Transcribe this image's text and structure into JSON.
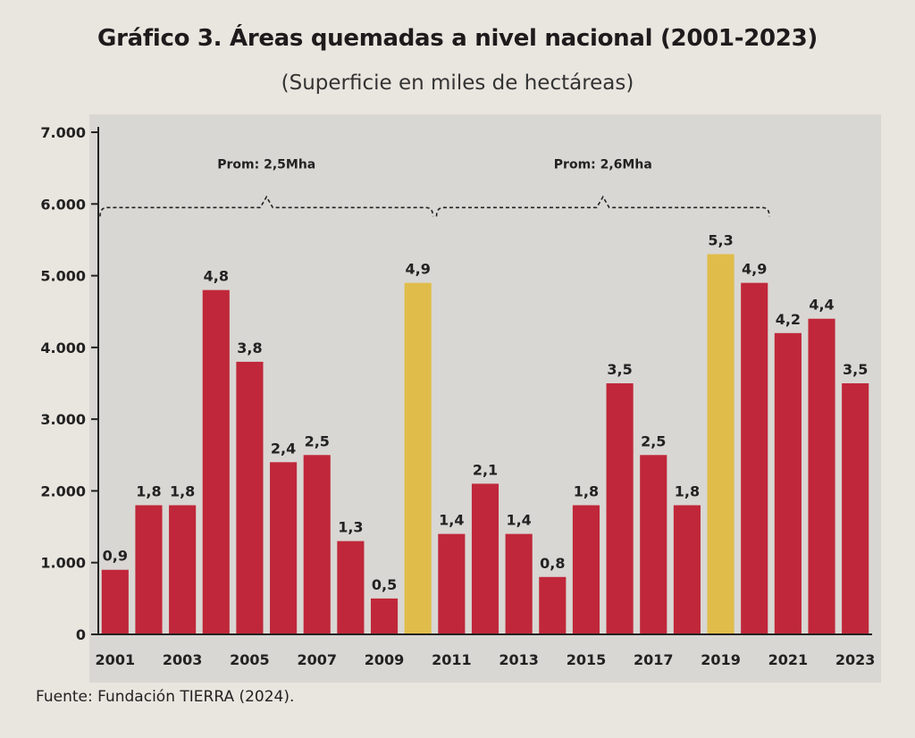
{
  "title": "Gráfico 3. Áreas quemadas a nivel nacional (2001-2023)",
  "subtitle": "(Superficie en miles de hectáreas)",
  "source": "Fuente: Fundación TIERRA (2024).",
  "colors": {
    "bar": "#c0273a",
    "highlight": "#e0bd4a",
    "panel": "#d9d7d3"
  },
  "chart_data": {
    "type": "bar",
    "categories": [
      "2001",
      "2002",
      "2003",
      "2004",
      "2005",
      "2006",
      "2007",
      "2008",
      "2009",
      "2010",
      "2011",
      "2012",
      "2013",
      "2014",
      "2015",
      "2016",
      "2017",
      "2018",
      "2019",
      "2020",
      "2021",
      "2022",
      "2023"
    ],
    "values": [
      900,
      1800,
      1800,
      4800,
      3800,
      2400,
      2500,
      1300,
      500,
      4900,
      1400,
      2100,
      1400,
      800,
      1800,
      3500,
      2500,
      1800,
      5300,
      4900,
      4200,
      4400,
      3500
    ],
    "data_labels": [
      "0,9",
      "1,8",
      "1,8",
      "4,8",
      "3,8",
      "2,4",
      "2,5",
      "1,3",
      "0,5",
      "4,9",
      "1,4",
      "2,1",
      "1,4",
      "0,8",
      "1,8",
      "3,5",
      "2,5",
      "1,8",
      "5,3",
      "4,9",
      "4,2",
      "4,4",
      "3,5"
    ],
    "highlighted": [
      "2010",
      "2019"
    ],
    "x_tick_labels": [
      "2001",
      "2003",
      "2005",
      "2007",
      "2009",
      "2011",
      "2013",
      "2015",
      "2017",
      "2019",
      "2021",
      "2023"
    ],
    "y_tick_labels": [
      "0",
      "1.000",
      "2.000",
      "3.000",
      "4.000",
      "5.000",
      "6.000",
      "7.000"
    ],
    "ylim": [
      0,
      7000
    ],
    "grid": false,
    "annotations": [
      {
        "label": "Prom: 2,5Mha",
        "from": "2001",
        "to": "2010",
        "value": 5950
      },
      {
        "label": "Prom: 2,6Mha",
        "from": "2011",
        "to": "2020",
        "value": 5950
      }
    ],
    "title": "Gráfico 3. Áreas quemadas a nivel nacional (2001-2023)",
    "subtitle": "(Superficie en miles de hectáreas)"
  }
}
